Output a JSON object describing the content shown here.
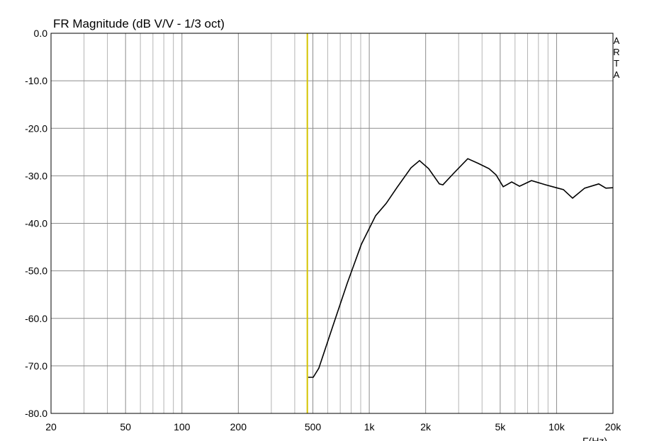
{
  "chart_data": {
    "type": "line",
    "title": "FR Magnitude (dB V/V - 1/3 oct)",
    "watermark": "ARTA",
    "xlabel": "F(Hz)",
    "xscale": "log",
    "xlim": [
      20,
      20000
    ],
    "ylim": [
      -80,
      0
    ],
    "xticks": [
      20,
      50,
      100,
      200,
      500,
      {
        "value": 1000,
        "label": "1k"
      },
      {
        "value": 2000,
        "label": "2k"
      },
      {
        "value": 5000,
        "label": "5k"
      },
      {
        "value": 10000,
        "label": "10k"
      },
      {
        "value": 20000,
        "label": "20k"
      }
    ],
    "xminor": [
      30,
      40,
      60,
      70,
      80,
      90,
      300,
      400,
      600,
      700,
      800,
      900,
      3000,
      4000,
      6000,
      7000,
      8000,
      9000
    ],
    "yticks": [
      {
        "value": 0,
        "label": "0.0"
      },
      {
        "value": -10,
        "label": "-10.0"
      },
      {
        "value": -20,
        "label": "-20.0"
      },
      {
        "value": -30,
        "label": "-30.0"
      },
      {
        "value": -40,
        "label": "-40.0"
      },
      {
        "value": -50,
        "label": "-50.0"
      },
      {
        "value": -60,
        "label": "-60.0"
      },
      {
        "value": -70,
        "label": "-70.0"
      },
      {
        "value": -80,
        "label": "-80.0"
      }
    ],
    "grid": true,
    "cursor_x": 467,
    "cursor_color": "#d4c400",
    "series": [
      {
        "color": "#000000",
        "x": [
          472,
          502,
          538,
          641,
          763,
          908,
          1081,
          1231,
          1403,
          1670,
          1854,
          2075,
          2367,
          2472,
          2818,
          3357,
          3821,
          4357,
          4753,
          5187,
          5758,
          6338,
          7346,
          8750,
          9960,
          10870,
          12170,
          14120,
          16790,
          18330,
          20000
        ],
        "values": [
          -72.4,
          -72.4,
          -70.5,
          -61.5,
          -52.6,
          -44.4,
          -38.4,
          -35.8,
          -32.5,
          -28.3,
          -26.8,
          -28.5,
          -31.7,
          -31.9,
          -29.5,
          -26.4,
          -27.4,
          -28.5,
          -29.8,
          -32.3,
          -31.3,
          -32.2,
          -31.0,
          -31.9,
          -32.5,
          -32.9,
          -34.7,
          -32.6,
          -31.7,
          -32.6,
          -32.5
        ]
      }
    ]
  }
}
